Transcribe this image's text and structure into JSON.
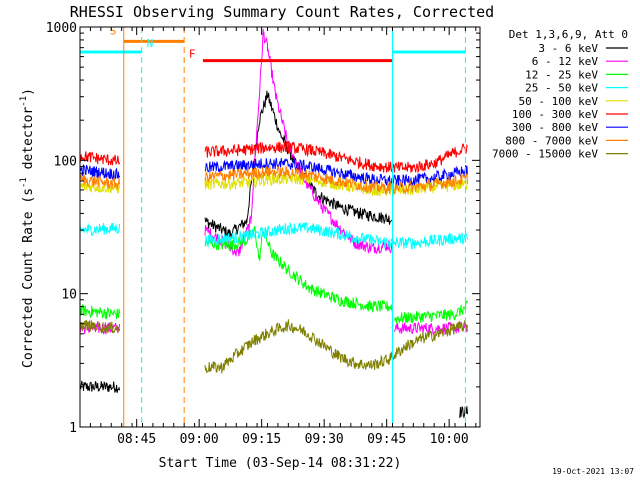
{
  "chart_data": {
    "type": "line",
    "title": "RHESSI Observing Summary Count Rates, Corrected",
    "xlabel": "Start Time (03-Sep-14 08:31:22)",
    "ylabel": "Corrected Count Rate (s⁻¹ detector⁻¹)",
    "ylabel_main": "Corrected Count Rate (s",
    "ylabel_exp1": "-1",
    "ylabel_mid": " detector",
    "ylabel_exp2": "-1",
    "ylabel_end": ")",
    "yscale": "log",
    "ylim": [
      1,
      1000
    ],
    "xlim_minutes": [
      0,
      96
    ],
    "x_ticks": [
      {
        "label": "08:45",
        "minute": 13.6
      },
      {
        "label": "09:00",
        "minute": 28.6
      },
      {
        "label": "09:15",
        "minute": 43.6
      },
      {
        "label": "09:30",
        "minute": 58.6
      },
      {
        "label": "09:45",
        "minute": 73.6
      },
      {
        "label": "10:00",
        "minute": 88.6
      }
    ],
    "y_ticks": [
      {
        "label": "1",
        "value": 1
      },
      {
        "label": "10",
        "value": 10
      },
      {
        "label": "100",
        "value": 100
      },
      {
        "label": "1000",
        "value": 1000
      }
    ],
    "legend_header": "Det 1,3,6,9, Att 0",
    "legend_position": "right",
    "series": [
      {
        "name": "3 - 6 keV",
        "color": "#000000",
        "points": [
          [
            0,
            2
          ],
          [
            9.5,
            2
          ],
          [
            null,
            null
          ],
          [
            30,
            35
          ],
          [
            36,
            28
          ],
          [
            40,
            35
          ],
          [
            43,
            200
          ],
          [
            45,
            310
          ],
          [
            48,
            160
          ],
          [
            52,
            90
          ],
          [
            57,
            55
          ],
          [
            62,
            45
          ],
          [
            67,
            40
          ],
          [
            73,
            37
          ],
          [
            75,
            36
          ],
          [
            null,
            null
          ],
          [
            91,
            1.3
          ],
          [
            93,
            1.3
          ]
        ]
      },
      {
        "name": "6 - 12 keV",
        "color": "#ff00ff",
        "points": [
          [
            0,
            5.5
          ],
          [
            9.5,
            5.5
          ],
          [
            null,
            null
          ],
          [
            30,
            30
          ],
          [
            34,
            25
          ],
          [
            38,
            20
          ],
          [
            41,
            35
          ],
          [
            43,
            300
          ],
          [
            44,
            900
          ],
          [
            45,
            700
          ],
          [
            47,
            300
          ],
          [
            50,
            130
          ],
          [
            54,
            70
          ],
          [
            58,
            45
          ],
          [
            62,
            32
          ],
          [
            66,
            24
          ],
          [
            70,
            22
          ],
          [
            74,
            23
          ],
          [
            75,
            22
          ],
          [
            null,
            null
          ],
          [
            75.5,
            5.5
          ],
          [
            93,
            5.5
          ]
        ]
      },
      {
        "name": "12 - 25 keV",
        "color": "#00ff00",
        "points": [
          [
            0,
            7.5
          ],
          [
            9.5,
            7
          ],
          [
            null,
            null
          ],
          [
            30,
            24
          ],
          [
            36,
            23
          ],
          [
            40,
            25
          ],
          [
            42,
            30
          ],
          [
            43,
            18
          ],
          [
            44,
            30
          ],
          [
            46,
            20
          ],
          [
            50,
            15
          ],
          [
            55,
            11
          ],
          [
            62,
            9
          ],
          [
            70,
            8
          ],
          [
            75,
            8
          ],
          [
            null,
            null
          ],
          [
            75.5,
            6.5
          ],
          [
            90,
            7
          ],
          [
            93,
            8
          ]
        ]
      },
      {
        "name": "25 - 50 keV",
        "color": "#00ffff",
        "points": [
          [
            0,
            30
          ],
          [
            9.5,
            31
          ],
          [
            null,
            null
          ],
          [
            30,
            25
          ],
          [
            40,
            27
          ],
          [
            45,
            29
          ],
          [
            50,
            31
          ],
          [
            55,
            31
          ],
          [
            60,
            29
          ],
          [
            65,
            27
          ],
          [
            70,
            25
          ],
          [
            75,
            24
          ],
          [
            80,
            24
          ],
          [
            85,
            25
          ],
          [
            90,
            26
          ],
          [
            93,
            26
          ]
        ]
      },
      {
        "name": "50 - 100 keV",
        "color": "#e0e000",
        "points": [
          [
            0,
            64
          ],
          [
            9.5,
            62
          ],
          [
            null,
            null
          ],
          [
            30,
            66
          ],
          [
            40,
            68
          ],
          [
            45,
            72
          ],
          [
            50,
            73
          ],
          [
            55,
            72
          ],
          [
            60,
            68
          ],
          [
            65,
            63
          ],
          [
            70,
            60
          ],
          [
            75,
            59
          ],
          [
            80,
            60
          ],
          [
            85,
            63
          ],
          [
            90,
            65
          ],
          [
            93,
            66
          ]
        ]
      },
      {
        "name": "100 - 300 keV",
        "color": "#ff0000",
        "points": [
          [
            0,
            108
          ],
          [
            9.5,
            98
          ],
          [
            null,
            null
          ],
          [
            30,
            115
          ],
          [
            40,
            120
          ],
          [
            45,
            125
          ],
          [
            50,
            125
          ],
          [
            55,
            120
          ],
          [
            60,
            110
          ],
          [
            65,
            100
          ],
          [
            70,
            92
          ],
          [
            75,
            88
          ],
          [
            80,
            88
          ],
          [
            85,
            95
          ],
          [
            90,
            115
          ],
          [
            93,
            125
          ]
        ]
      },
      {
        "name": "300 - 800 keV",
        "color": "#0000ff",
        "points": [
          [
            0,
            85
          ],
          [
            9.5,
            78
          ],
          [
            null,
            null
          ],
          [
            30,
            88
          ],
          [
            40,
            92
          ],
          [
            45,
            95
          ],
          [
            50,
            94
          ],
          [
            55,
            90
          ],
          [
            60,
            83
          ],
          [
            65,
            77
          ],
          [
            70,
            72
          ],
          [
            75,
            70
          ],
          [
            80,
            71
          ],
          [
            85,
            74
          ],
          [
            90,
            80
          ],
          [
            93,
            84
          ]
        ]
      },
      {
        "name": "800 - 7000 keV",
        "color": "#ff8000",
        "points": [
          [
            0,
            72
          ],
          [
            9.5,
            66
          ],
          [
            null,
            null
          ],
          [
            30,
            75
          ],
          [
            40,
            79
          ],
          [
            45,
            82
          ],
          [
            50,
            81
          ],
          [
            55,
            78
          ],
          [
            60,
            72
          ],
          [
            65,
            67
          ],
          [
            70,
            63
          ],
          [
            75,
            62
          ],
          [
            80,
            63
          ],
          [
            85,
            66
          ],
          [
            90,
            70
          ],
          [
            93,
            73
          ]
        ]
      },
      {
        "name": "7000 - 15000 keV",
        "color": "#808000",
        "points": [
          [
            0,
            5.8
          ],
          [
            9.5,
            5.5
          ],
          [
            null,
            null
          ],
          [
            30,
            2.8
          ],
          [
            34,
            2.8
          ],
          [
            38,
            3.6
          ],
          [
            42,
            4.5
          ],
          [
            46,
            5.2
          ],
          [
            50,
            5.8
          ],
          [
            54,
            5.2
          ],
          [
            58,
            4.2
          ],
          [
            62,
            3.4
          ],
          [
            66,
            3.0
          ],
          [
            70,
            2.9
          ],
          [
            74,
            3.2
          ],
          [
            78,
            4.0
          ],
          [
            82,
            4.6
          ],
          [
            86,
            5.0
          ],
          [
            90,
            5.5
          ],
          [
            93,
            5.8
          ]
        ]
      }
    ],
    "markers": [
      {
        "label": "S",
        "color": "#ff8000",
        "minute": 10.5,
        "style": "solid"
      },
      {
        "label": "N",
        "color": "#00ffff",
        "minute": 14.8,
        "style": "dashed"
      },
      {
        "label": "",
        "color": "#ff8000",
        "minute": 25.0,
        "style": "dashed"
      },
      {
        "label": "F",
        "color": "#ff0000",
        "minute": null,
        "style": "none"
      },
      {
        "label": "",
        "color": "#00ffff",
        "minute": 75.0,
        "style": "solid"
      },
      {
        "label": "",
        "color": "#00ffff",
        "minute": 92.5,
        "style": "dashed"
      }
    ],
    "state_bars": [
      {
        "name": "night",
        "color": "#00ffff",
        "value": 650,
        "ranges": [
          [
            0,
            14.8
          ],
          [
            75.0,
            92.5
          ]
        ]
      },
      {
        "name": "saa",
        "color": "#ff8000",
        "value": 780,
        "ranges": [
          [
            10.5,
            25.0
          ]
        ]
      },
      {
        "name": "flare",
        "color": "#ff0000",
        "value": 560,
        "ranges": [
          [
            29.5,
            75.0
          ]
        ]
      }
    ]
  },
  "footer_date": "19-Oct-2021 13:07"
}
